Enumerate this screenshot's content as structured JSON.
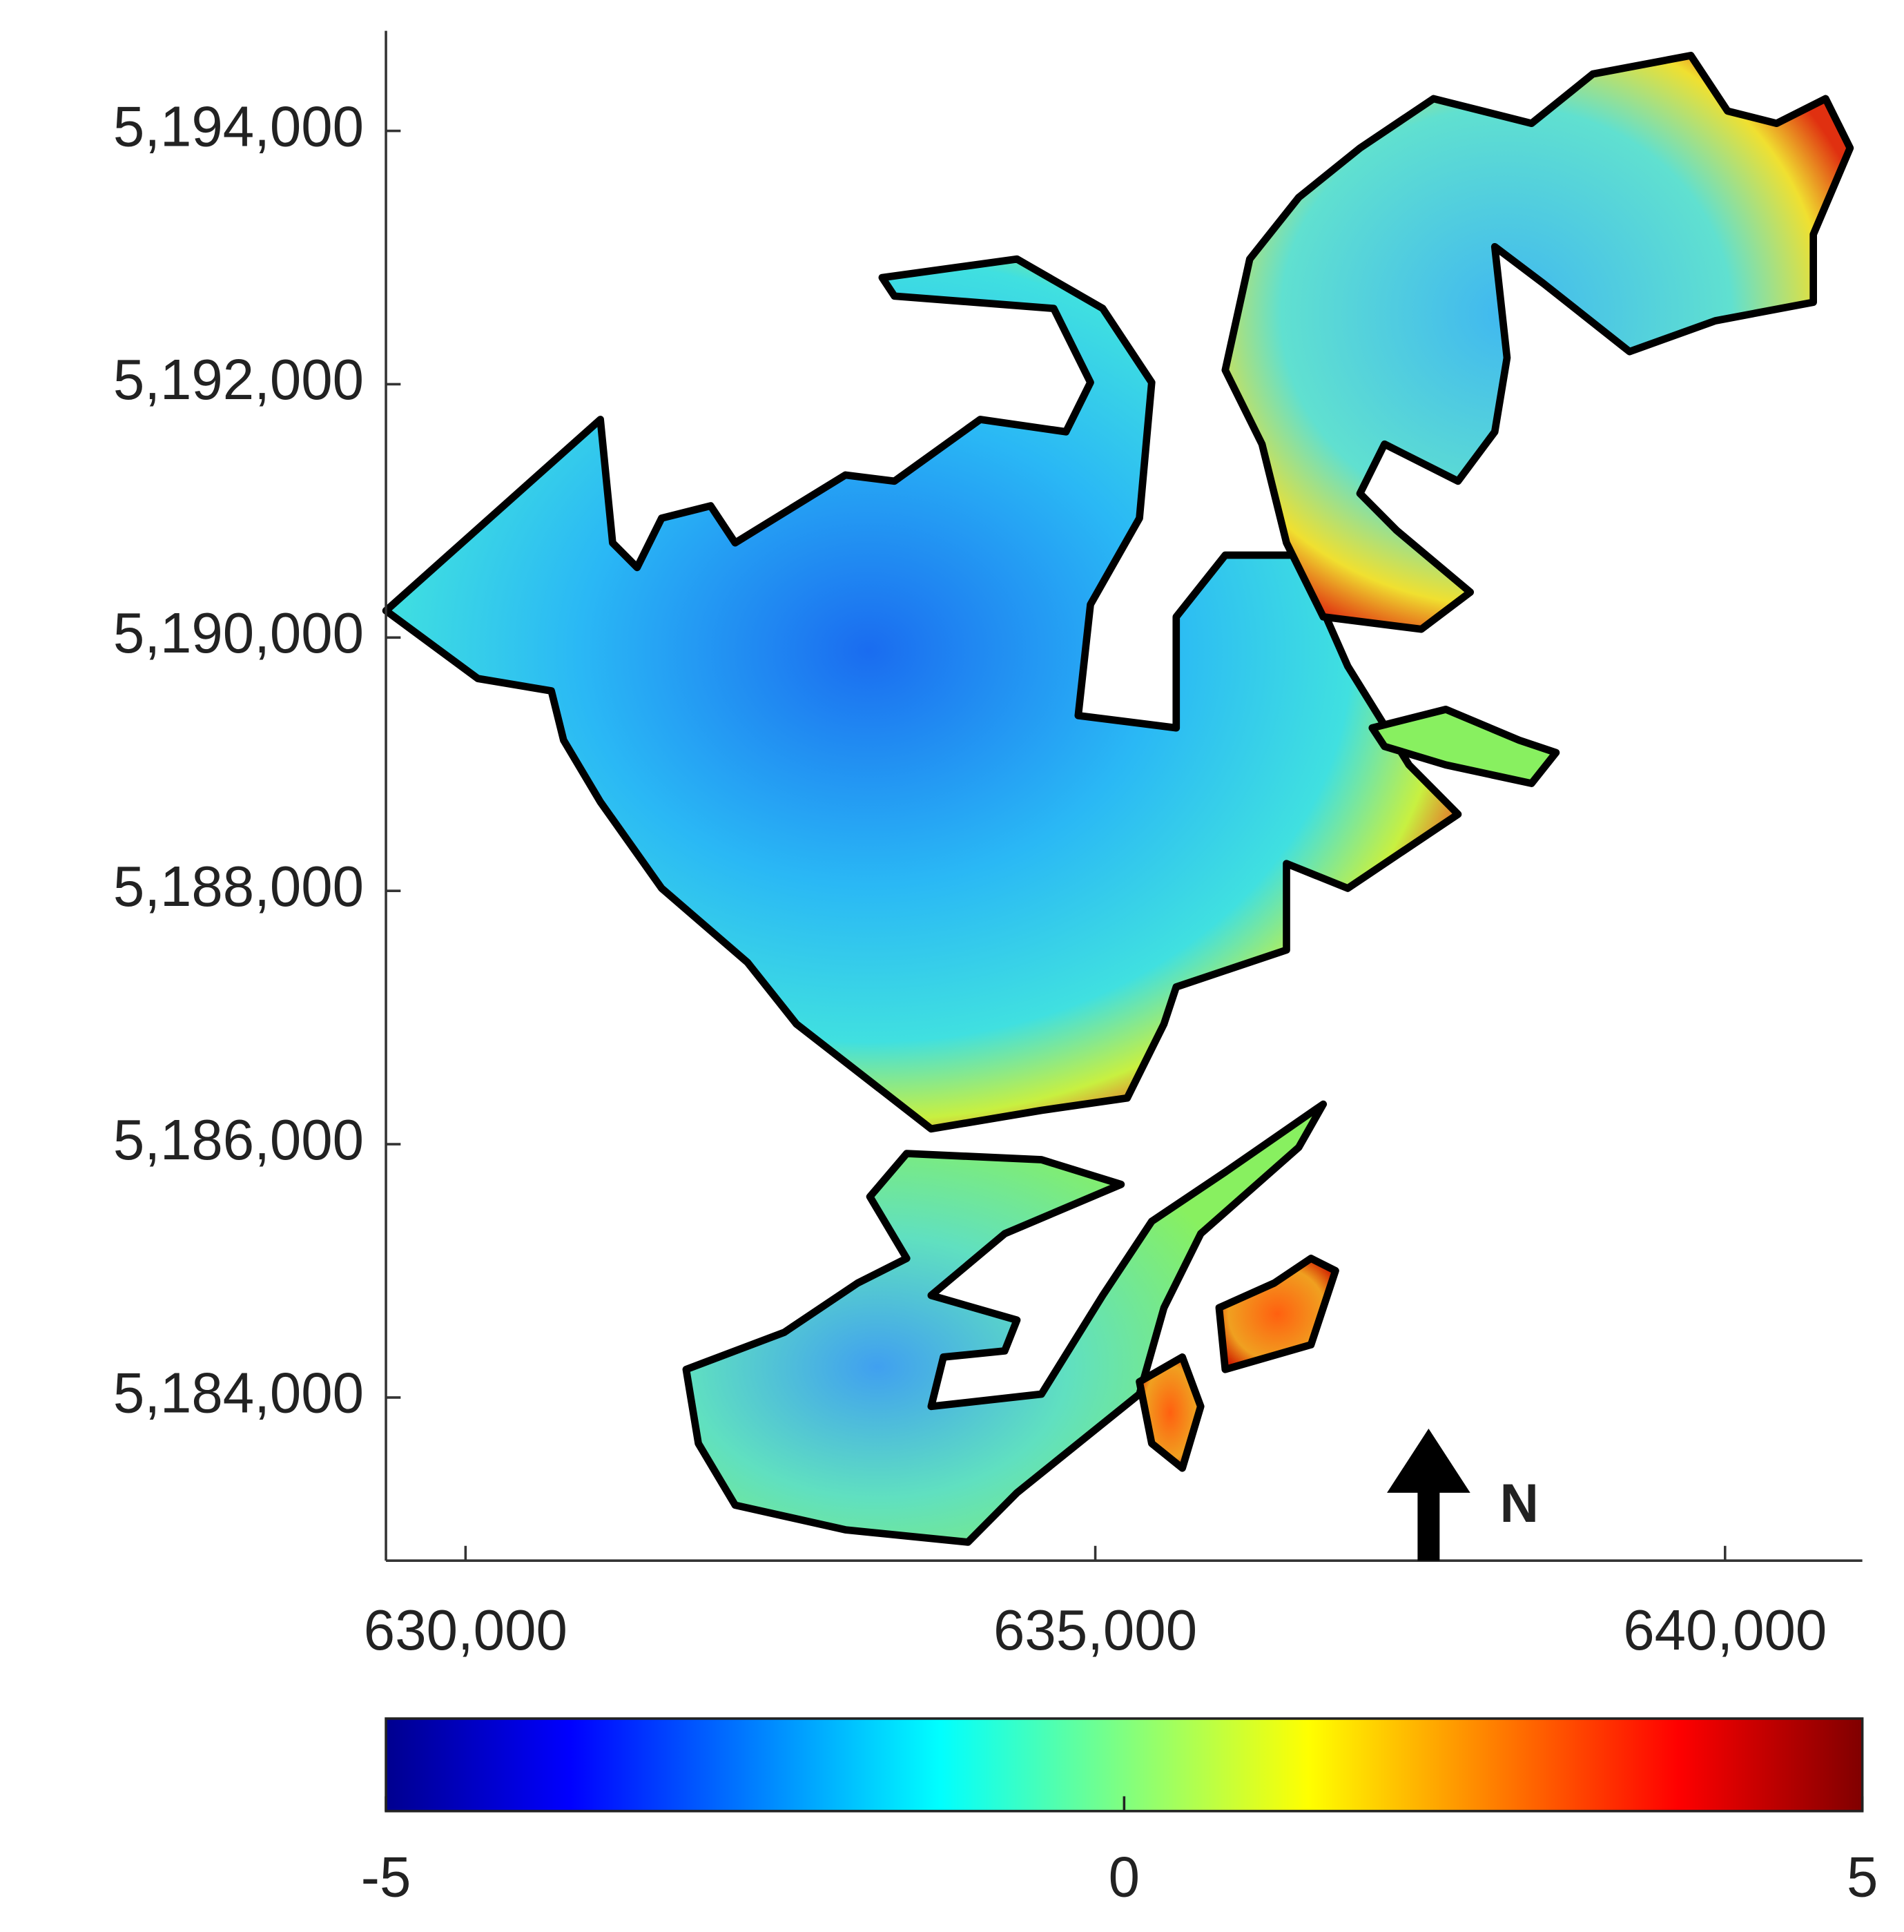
{
  "chart_data": {
    "type": "map",
    "xlim": [
      629368,
      641090
    ],
    "xticks": [
      {
        "value": 630000,
        "label": "630,000"
      },
      {
        "value": 635000,
        "label": "635,000"
      },
      {
        "value": 640000,
        "label": "640,000"
      }
    ],
    "ylim": [
      5182712,
      5194790
    ],
    "yticks": [
      {
        "value": 5184000,
        "label": "5,184,000"
      },
      {
        "value": 5186000,
        "label": "5,186,000"
      },
      {
        "value": 5188000,
        "label": "5,188,000"
      },
      {
        "value": 5190000,
        "label": "5,190,000"
      },
      {
        "value": 5192000,
        "label": "5,192,000"
      },
      {
        "value": 5194000,
        "label": "5,194,000"
      }
    ],
    "colorbar": {
      "colormap": "jet",
      "clim": [
        -5,
        5
      ],
      "ticks": [
        -5,
        0,
        5
      ]
    },
    "north_label": "N"
  }
}
